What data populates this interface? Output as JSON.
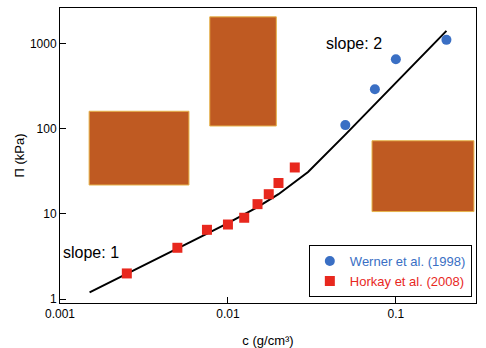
{
  "chart_data": {
    "type": "scatter",
    "x_label": "c (g/cm³)",
    "y_label": "Π (kPa)",
    "log": true,
    "grid": false,
    "legend": "bottom right",
    "xlim": [
      0.001,
      0.3
    ],
    "ylim": [
      0.9,
      2600
    ],
    "xticks": [
      0.001,
      0.01,
      0.1
    ],
    "yticks": [
      1,
      10,
      100,
      1000
    ],
    "series": [
      {
        "type": "line",
        "color": "#000000",
        "line_style": "solid",
        "x": [
          0.0015,
          0.003,
          0.006,
          0.01,
          0.015,
          0.02,
          0.03,
          0.05,
          0.1,
          0.2
        ],
        "values": [
          1.2,
          2.4,
          4.7,
          7.8,
          12,
          17,
          31,
          85,
          340,
          1400
        ]
      },
      {
        "name": "Werner et al. (1998)",
        "type": "scatter",
        "color": "#3a6fc4",
        "marker": "circle",
        "x": [
          0.05,
          0.075,
          0.1,
          0.2
        ],
        "values": [
          110,
          290,
          650,
          1100
        ]
      },
      {
        "name": "Horkay et al. (2008)",
        "type": "scatter",
        "color": "#e8281e",
        "marker": "square",
        "x": [
          0.0025,
          0.005,
          0.0075,
          0.01,
          0.0125,
          0.015,
          0.0175,
          0.02,
          0.025
        ],
        "values": [
          2,
          4,
          6.5,
          7.5,
          9,
          13,
          17,
          23,
          35
        ]
      }
    ],
    "annotations": [
      {
        "text": "slope: 1",
        "x": 0.0023,
        "y": 3.5
      },
      {
        "text": "slope: 2",
        "x": 0.085,
        "y": 1000
      }
    ]
  }
}
